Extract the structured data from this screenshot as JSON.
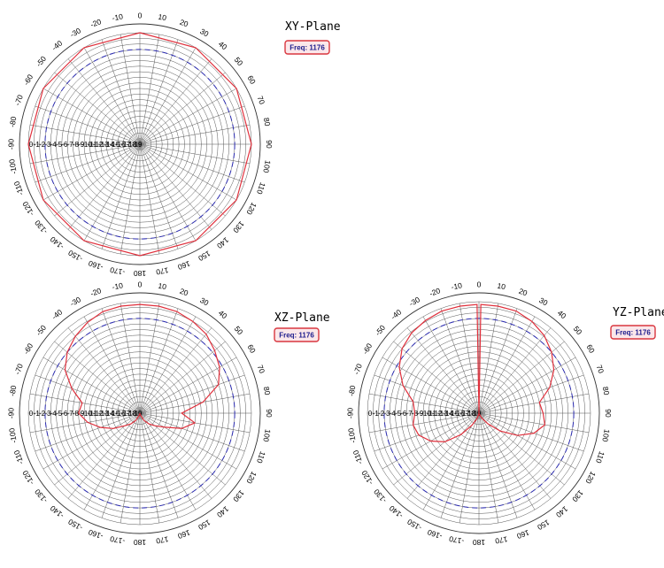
{
  "colors": {
    "pattern": "#e0303c",
    "reference": "#2b2bb0",
    "grid": "#555555",
    "freq_border": "#d9363e",
    "freq_fill": "#fbe7ea",
    "freq_text": "#1a1a8c"
  },
  "angle_ticks": [
    "0",
    "10",
    "20",
    "30",
    "40",
    "50",
    "60",
    "70",
    "80",
    "90",
    "100",
    "110",
    "120",
    "130",
    "140",
    "150",
    "160",
    "170",
    "180",
    "-170",
    "-160",
    "-150",
    "-140",
    "-130",
    "-120",
    "-110",
    "-100",
    "-90",
    "-80",
    "-70",
    "-60",
    "-50",
    "-40",
    "-30",
    "-20",
    "-10"
  ],
  "radial_ticks": [
    "0",
    "-1",
    "-2",
    "-3",
    "-4",
    "-5",
    "-6",
    "-7",
    "-8",
    "-9",
    "-10",
    "-11",
    "-12",
    "-13",
    "-14",
    "-15",
    "-16",
    "-17",
    "-18",
    "-19"
  ],
  "chart_data": [
    {
      "type": "polar",
      "title": "XY-Plane",
      "freq_label": "Freq: 1176",
      "r_range": [
        -20,
        0
      ],
      "reference_level_db": -3,
      "grid": true,
      "series": [
        {
          "theta": [
            0,
            30,
            60,
            90,
            120,
            150,
            180,
            210,
            240,
            270,
            300,
            330
          ],
          "r": [
            0,
            0,
            0,
            0,
            0,
            0,
            0,
            0,
            0,
            0,
            0,
            0
          ]
        }
      ]
    },
    {
      "type": "polar",
      "title": "XZ-Plane",
      "freq_label": "Freq: 1176",
      "r_range": [
        -20,
        0
      ],
      "reference_level_db": -3,
      "grid": true,
      "series": [
        {
          "theta": [
            0,
            10,
            20,
            30,
            40,
            50,
            60,
            70,
            80,
            90,
            100,
            110,
            120,
            130,
            140,
            150,
            160,
            170,
            180,
            190,
            200,
            210,
            220,
            230,
            240,
            250,
            260,
            270,
            280,
            290,
            300,
            310,
            320,
            330,
            340,
            350
          ],
          "r": [
            -0.5,
            -0.5,
            -0.6,
            -1.0,
            -1.5,
            -2.5,
            -3.5,
            -5.0,
            -8.5,
            -12.5,
            -10.0,
            -12.0,
            -15.0,
            -16.5,
            -17.5,
            -18.5,
            -19.5,
            -19.8,
            -20.0,
            -19.8,
            -19.5,
            -18.5,
            -17.5,
            -16.5,
            -14.5,
            -12.5,
            -10.5,
            -9.0,
            -9.5,
            -7.0,
            -4.5,
            -3.0,
            -2.0,
            -1.2,
            -0.6,
            -0.5
          ]
        }
      ]
    },
    {
      "type": "polar",
      "title": "YZ-Plane",
      "freq_label": "Freq: 1176",
      "r_range": [
        -20,
        0
      ],
      "reference_level_db": -3,
      "grid": true,
      "series": [
        {
          "theta": [
            0,
            1,
            10,
            20,
            30,
            40,
            50,
            60,
            70,
            80,
            90,
            100,
            110,
            120,
            130,
            140,
            150,
            160,
            170,
            180,
            190,
            200,
            210,
            220,
            230,
            240,
            250,
            260,
            270,
            280,
            290,
            300,
            310,
            320,
            330,
            340,
            350,
            359
          ],
          "r": [
            -20.0,
            -0.5,
            -0.5,
            -0.5,
            -1.0,
            -1.8,
            -3.0,
            -4.5,
            -6.5,
            -9.0,
            -8.5,
            -8.0,
            -9.5,
            -12.0,
            -15.0,
            -17.5,
            -19.0,
            -19.8,
            -20.0,
            -20.0,
            -19.8,
            -19.0,
            -17.5,
            -15.0,
            -12.0,
            -10.0,
            -8.5,
            -8.0,
            -8.5,
            -8.0,
            -5.5,
            -3.5,
            -2.0,
            -1.2,
            -0.8,
            -0.5,
            -0.5,
            -0.5
          ]
        }
      ]
    }
  ]
}
